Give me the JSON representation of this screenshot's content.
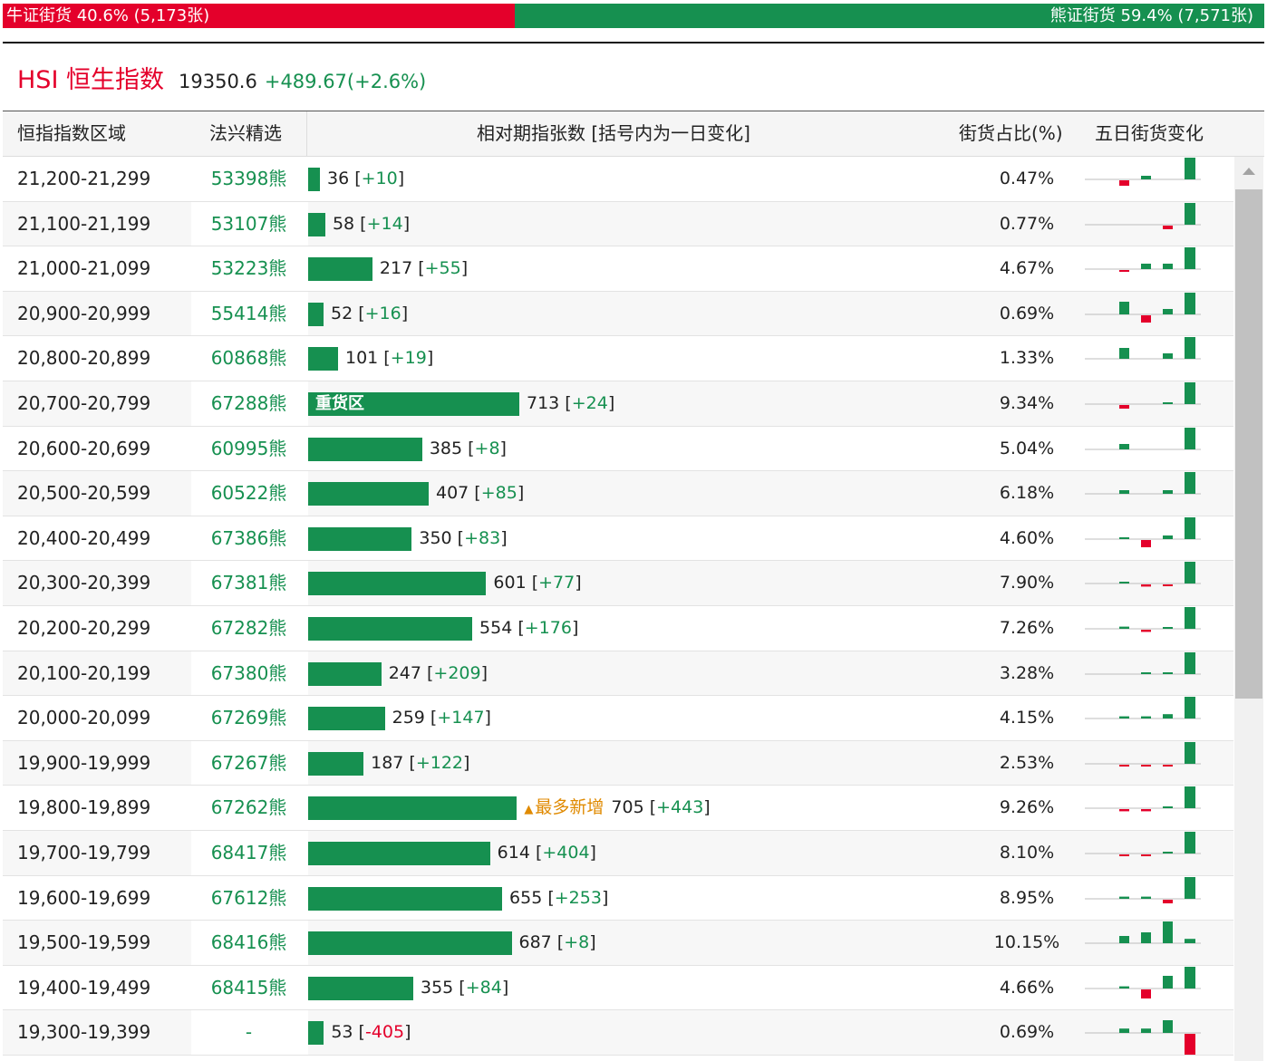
{
  "colors": {
    "bull": "#e4002b",
    "bear": "#169050",
    "flag": "#e08a00"
  },
  "ratio": {
    "bull_label": "牛证街货 40.6% (5,173张)",
    "bear_label": "熊证街货 59.4% (7,571张)",
    "bull_fraction": 0.406
  },
  "index": {
    "name": "HSI 恒生指数",
    "price": "19350.6",
    "change": "+489.67(+2.6%)"
  },
  "headers": {
    "range": "恒指指数区域",
    "pick": "法兴精选",
    "contracts": "相对期指张数 [括号内为一日变化]",
    "share": "街货占比(%)",
    "five_day": "五日街货变化"
  },
  "rows": [
    {
      "range": "21,200-21,299",
      "pick": "53398熊",
      "count": "36",
      "change": "+10",
      "share": "0.47%",
      "bar": 36,
      "spark": [
        -0.15,
        0.1,
        0,
        0,
        0.6
      ]
    },
    {
      "range": "21,100-21,199",
      "pick": "53107熊",
      "count": "58",
      "change": "+14",
      "share": "0.77%",
      "bar": 58,
      "spark": [
        0,
        0,
        -0.1,
        0,
        0.6
      ]
    },
    {
      "range": "21,000-21,099",
      "pick": "53223熊",
      "count": "217",
      "change": "+55",
      "share": "4.67%",
      "bar": 217,
      "spark": [
        -0.04,
        0.15,
        0.15,
        0,
        0.6
      ]
    },
    {
      "range": "20,900-20,999",
      "pick": "55414熊",
      "count": "52",
      "change": "+16",
      "share": "0.69%",
      "bar": 52,
      "spark": [
        0.35,
        -0.2,
        0.15,
        0,
        0.6
      ]
    },
    {
      "range": "20,800-20,899",
      "pick": "60868熊",
      "count": "101",
      "change": "+19",
      "share": "1.33%",
      "bar": 101,
      "spark": [
        0.3,
        0,
        0.15,
        0,
        0.6
      ]
    },
    {
      "range": "20,700-20,799",
      "pick": "67288熊",
      "count": "713",
      "change": "+24",
      "share": "9.34%",
      "bar": 713,
      "label": "重货区",
      "spark": [
        -0.1,
        0,
        0.04,
        0,
        0.6
      ]
    },
    {
      "range": "20,600-20,699",
      "pick": "60995熊",
      "count": "385",
      "change": "+8",
      "share": "5.04%",
      "bar": 385,
      "spark": [
        0.15,
        0,
        0,
        0,
        0.6
      ]
    },
    {
      "range": "20,500-20,599",
      "pick": "60522熊",
      "count": "407",
      "change": "+85",
      "share": "6.18%",
      "bar": 407,
      "spark": [
        0.1,
        0,
        0.1,
        0,
        0.6
      ]
    },
    {
      "range": "20,400-20,499",
      "pick": "67386熊",
      "count": "350",
      "change": "+83",
      "share": "4.60%",
      "bar": 350,
      "spark": [
        0.03,
        -0.2,
        0.1,
        0,
        0.6
      ]
    },
    {
      "range": "20,300-20,399",
      "pick": "67381熊",
      "count": "601",
      "change": "+77",
      "share": "7.90%",
      "bar": 601,
      "spark": [
        0.03,
        -0.06,
        -0.04,
        0,
        0.6
      ]
    },
    {
      "range": "20,200-20,299",
      "pick": "67282熊",
      "count": "554",
      "change": "+176",
      "share": "7.26%",
      "bar": 554,
      "spark": [
        0.06,
        -0.06,
        0.03,
        0,
        0.6
      ]
    },
    {
      "range": "20,100-20,199",
      "pick": "67380熊",
      "count": "247",
      "change": "+209",
      "share": "3.28%",
      "bar": 247,
      "spark": [
        0,
        0.03,
        0.03,
        0,
        0.6
      ]
    },
    {
      "range": "20,000-20,099",
      "pick": "67269熊",
      "count": "259",
      "change": "+147",
      "share": "4.15%",
      "bar": 259,
      "spark": [
        0.06,
        0.06,
        0.12,
        0,
        0.6
      ]
    },
    {
      "range": "19,900-19,999",
      "pick": "67267熊",
      "count": "187",
      "change": "+122",
      "share": "2.53%",
      "bar": 187,
      "spark": [
        -0.03,
        -0.03,
        -0.03,
        0,
        0.6
      ]
    },
    {
      "range": "19,800-19,899",
      "pick": "67262熊",
      "count": "705",
      "change": "+443",
      "share": "9.26%",
      "bar": 705,
      "flag": "最多新增",
      "spark": [
        -0.06,
        -0.06,
        0.04,
        0,
        0.6
      ]
    },
    {
      "range": "19,700-19,799",
      "pick": "68417熊",
      "count": "614",
      "change": "+404",
      "share": "8.10%",
      "bar": 614,
      "spark": [
        -0.03,
        -0.03,
        0.03,
        0,
        0.6
      ]
    },
    {
      "range": "19,600-19,699",
      "pick": "67612熊",
      "count": "655",
      "change": "+253",
      "share": "8.95%",
      "bar": 655,
      "spark": [
        0.06,
        0.06,
        -0.1,
        0,
        0.6
      ]
    },
    {
      "range": "19,500-19,599",
      "pick": "68416熊",
      "count": "687",
      "change": "+8",
      "share": "10.15%",
      "bar": 687,
      "spark": [
        0.2,
        0.3,
        0.6,
        0,
        0.12
      ]
    },
    {
      "range": "19,400-19,499",
      "pick": "68415熊",
      "count": "355",
      "change": "+84",
      "share": "4.66%",
      "bar": 355,
      "spark": [
        0.06,
        -0.25,
        0.35,
        0,
        0.6
      ]
    },
    {
      "range": "19,300-19,399",
      "pick": "-",
      "count": "53",
      "change": "-405",
      "share": "0.69%",
      "bar": 53,
      "spark": [
        0.12,
        0.12,
        0.35,
        0,
        -0.6
      ]
    }
  ]
}
